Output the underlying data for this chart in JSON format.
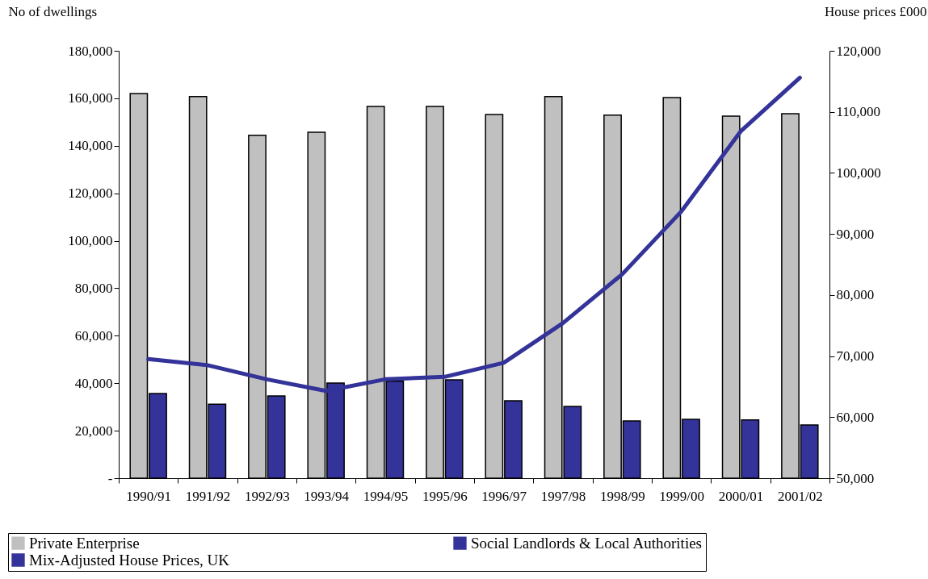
{
  "chart_data": {
    "type": "bar",
    "ylabel": "No of dwellings",
    "y2label": "House prices £000",
    "categories": [
      "1990/91",
      "1991/92",
      "1992/93",
      "1993/94",
      "1994/95",
      "1995/96",
      "1996/97",
      "1997/98",
      "1998/99",
      "1999/00",
      "2000/01",
      "2001/02"
    ],
    "series": [
      {
        "name": "Private Enterprise",
        "color": "#c0c0c0",
        "values": [
          162000,
          160700,
          144400,
          145700,
          156600,
          156600,
          153200,
          160700,
          152900,
          160300,
          152500,
          153500
        ]
      },
      {
        "name": "Social Landlords & Local Authorities",
        "color": "#333399",
        "values": [
          35700,
          31200,
          34600,
          40100,
          40800,
          41400,
          32600,
          30200,
          24100,
          24800,
          24500,
          22400
        ]
      },
      {
        "name": "Mix-Adjusted  House Prices, UK",
        "type": "line",
        "axis": "y2",
        "color": "#333399",
        "values": [
          69500,
          68500,
          66200,
          64300,
          66200,
          66600,
          68900,
          75400,
          83400,
          93700,
          106800,
          115600
        ]
      }
    ],
    "ylim": [
      0,
      180000
    ],
    "yticks": [
      {
        "value": 0,
        "label": "-"
      },
      {
        "value": 20000,
        "label": "20,000"
      },
      {
        "value": 40000,
        "label": "40,000"
      },
      {
        "value": 60000,
        "label": "60,000"
      },
      {
        "value": 80000,
        "label": "80,000"
      },
      {
        "value": 100000,
        "label": "100,000"
      },
      {
        "value": 120000,
        "label": "120,000"
      },
      {
        "value": 140000,
        "label": "140,000"
      },
      {
        "value": 160000,
        "label": "160,000"
      },
      {
        "value": 180000,
        "label": "180,000"
      }
    ],
    "y2lim": [
      50000,
      120000
    ],
    "y2ticks": [
      {
        "value": 50000,
        "label": "50,000"
      },
      {
        "value": 60000,
        "label": "60,000"
      },
      {
        "value": 70000,
        "label": "70,000"
      },
      {
        "value": 80000,
        "label": "80,000"
      },
      {
        "value": 90000,
        "label": "90,000"
      },
      {
        "value": 100000,
        "label": "100,000"
      },
      {
        "value": 110000,
        "label": "110,000"
      },
      {
        "value": 120000,
        "label": "120,000"
      }
    ],
    "legend": "bottom",
    "grid": false
  }
}
